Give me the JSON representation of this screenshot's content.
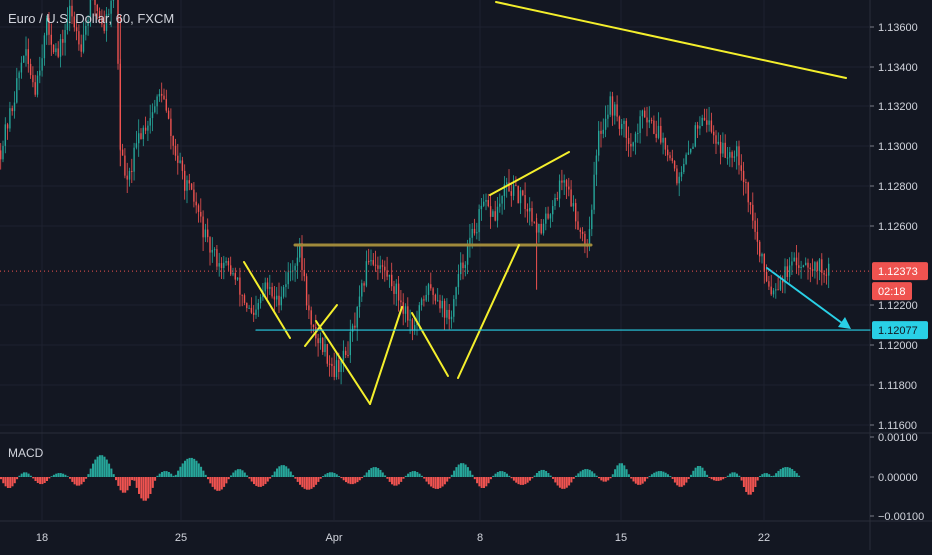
{
  "header": {
    "title": "Euro / U.S. Dollar, 60, FXCM"
  },
  "macd_panel": {
    "label": "MACD"
  },
  "colors": {
    "background": "#131722",
    "grid": "#1e2230",
    "up": "#26a69a",
    "down": "#ef5350",
    "yellow": "#f4ef2c",
    "cyan": "#29d0e6",
    "neckline": "#a08a3b",
    "price_tag": "#ef5350",
    "target_tag": "#29d0e6"
  },
  "chart_data": [
    {
      "type": "candlestick",
      "title": "Euro / U.S. Dollar, 60, FXCM",
      "xlabel": "",
      "ylabel": "",
      "x_ticks": [
        "18",
        "25",
        "Apr",
        "8",
        "15",
        "22"
      ],
      "y_ticks": [
        "1.13600",
        "1.13400",
        "1.13200",
        "1.13000",
        "1.12800",
        "1.12600",
        "1.12200",
        "1.12000",
        "1.11800",
        "1.11600"
      ],
      "ylim": [
        1.1155,
        1.1375
      ],
      "grid": true,
      "last_price": {
        "value": 1.12373,
        "label": "1.12373",
        "countdown": "02:18"
      },
      "target_level": {
        "value": 1.12077,
        "label": "1.12077"
      },
      "neckline": {
        "value": 1.1249
      },
      "path": [
        [
          0,
          1.1298
        ],
        [
          5,
          1.132
        ],
        [
          10,
          1.1348
        ],
        [
          15,
          1.133
        ],
        [
          20,
          1.136
        ],
        [
          25,
          1.1345
        ],
        [
          30,
          1.1368
        ],
        [
          35,
          1.1352
        ],
        [
          40,
          1.1375
        ],
        [
          45,
          1.136
        ],
        [
          50,
          1.1385
        ],
        [
          52,
          1.13
        ],
        [
          55,
          1.128
        ],
        [
          60,
          1.1305
        ],
        [
          65,
          1.1315
        ],
        [
          70,
          1.1328
        ],
        [
          75,
          1.13
        ],
        [
          80,
          1.1282
        ],
        [
          85,
          1.127
        ],
        [
          90,
          1.125
        ],
        [
          95,
          1.1242
        ],
        [
          100,
          1.1238
        ],
        [
          105,
          1.1225
        ],
        [
          110,
          1.1212
        ],
        [
          115,
          1.123
        ],
        [
          120,
          1.1222
        ],
        [
          125,
          1.1235
        ],
        [
          130,
          1.1248
        ],
        [
          135,
          1.1208
        ],
        [
          140,
          1.12
        ],
        [
          145,
          1.1188
        ],
        [
          150,
          1.1195
        ],
        [
          155,
          1.1215
        ],
        [
          160,
          1.1245
        ],
        [
          165,
          1.124
        ],
        [
          170,
          1.1232
        ],
        [
          175,
          1.122
        ],
        [
          180,
          1.1208
        ],
        [
          185,
          1.1228
        ],
        [
          190,
          1.1225
        ],
        [
          195,
          1.1212
        ],
        [
          200,
          1.1238
        ],
        [
          205,
          1.1255
        ],
        [
          210,
          1.127
        ],
        [
          215,
          1.1265
        ],
        [
          220,
          1.128
        ],
        [
          225,
          1.1275
        ],
        [
          230,
          1.1268
        ],
        [
          235,
          1.1256
        ],
        [
          240,
          1.1272
        ],
        [
          245,
          1.1285
        ],
        [
          250,
          1.1265
        ],
        [
          255,
          1.125
        ],
        [
          260,
          1.1305
        ],
        [
          265,
          1.1322
        ],
        [
          270,
          1.131
        ],
        [
          275,
          1.1302
        ],
        [
          280,
          1.1318
        ],
        [
          285,
          1.1308
        ],
        [
          290,
          1.13
        ],
        [
          295,
          1.1282
        ],
        [
          300,
          1.13
        ],
        [
          305,
          1.1318
        ],
        [
          310,
          1.1306
        ],
        [
          315,
          1.1296
        ],
        [
          320,
          1.13
        ],
        [
          325,
          1.1275
        ],
        [
          330,
          1.1245
        ],
        [
          335,
          1.1228
        ],
        [
          340,
          1.1235
        ],
        [
          345,
          1.124
        ],
        [
          350,
          1.1243
        ],
        [
          355,
          1.124
        ],
        [
          360,
          1.1237
        ]
      ]
    },
    {
      "type": "bar",
      "title": "MACD",
      "y_ticks": [
        "0.00100",
        "0.00000",
        "-0.00100"
      ],
      "ylim": [
        -0.00105,
        0.00105
      ],
      "bumps": [
        [
          0,
          8,
          -0.00028
        ],
        [
          8,
          14,
          0.00012
        ],
        [
          14,
          22,
          -0.00018
        ],
        [
          22,
          30,
          0.0001
        ],
        [
          30,
          38,
          -0.00022
        ],
        [
          38,
          50,
          0.00055
        ],
        [
          50,
          58,
          -0.0004
        ],
        [
          58,
          68,
          -0.0006
        ],
        [
          68,
          76,
          0.00015
        ],
        [
          76,
          90,
          0.00048
        ],
        [
          90,
          100,
          -0.00035
        ],
        [
          100,
          108,
          0.0002
        ],
        [
          108,
          118,
          -0.00025
        ],
        [
          118,
          128,
          0.0003
        ],
        [
          128,
          140,
          -0.00032
        ],
        [
          140,
          148,
          0.00012
        ],
        [
          148,
          158,
          -0.00018
        ],
        [
          158,
          168,
          0.00025
        ],
        [
          168,
          176,
          -0.00022
        ],
        [
          176,
          184,
          0.00015
        ],
        [
          184,
          196,
          -0.0003
        ],
        [
          196,
          206,
          0.00035
        ],
        [
          206,
          214,
          -0.00028
        ],
        [
          214,
          222,
          0.00015
        ],
        [
          222,
          232,
          -0.0002
        ],
        [
          232,
          240,
          0.00018
        ],
        [
          240,
          250,
          -0.0003
        ],
        [
          250,
          260,
          0.0002
        ],
        [
          260,
          266,
          -0.00012
        ],
        [
          266,
          274,
          0.00035
        ],
        [
          274,
          282,
          -0.0002
        ],
        [
          282,
          292,
          0.00015
        ],
        [
          292,
          300,
          -0.00025
        ],
        [
          300,
          308,
          0.00028
        ],
        [
          308,
          316,
          -0.0001
        ],
        [
          316,
          322,
          0.00012
        ],
        [
          322,
          330,
          -0.00045
        ],
        [
          330,
          336,
          0.0001
        ],
        [
          336,
          348,
          0.00025
        ]
      ]
    }
  ]
}
